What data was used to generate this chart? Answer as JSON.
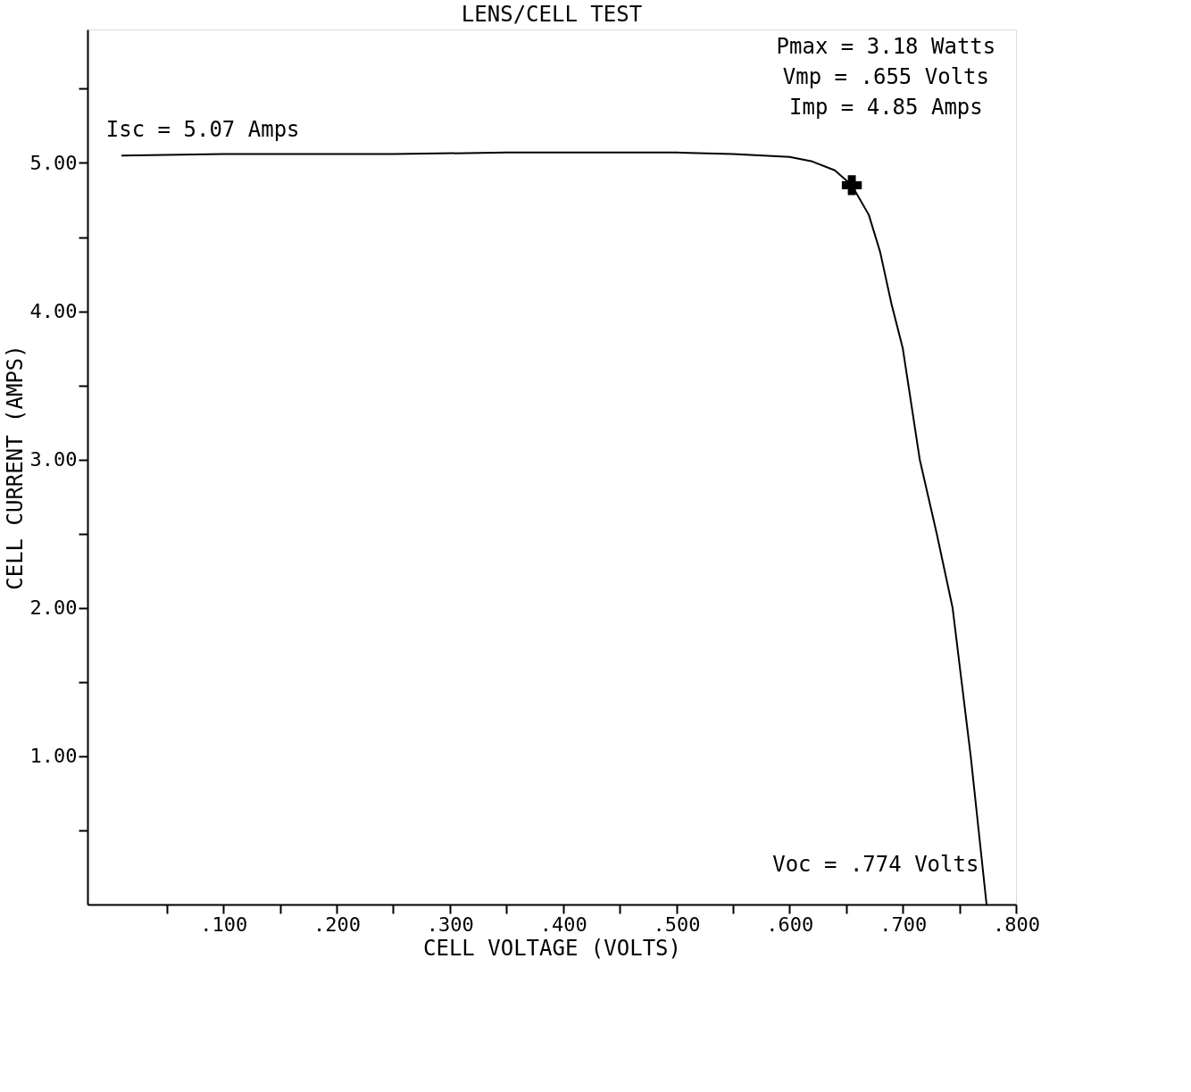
{
  "chart_data": {
    "type": "line",
    "title": "LENS/CELL TEST",
    "xlabel": "CELL VOLTAGE (VOLTS)",
    "ylabel": "CELL CURRENT  (AMPS)",
    "xlim": [
      -0.02,
      0.8
    ],
    "ylim": [
      0,
      5.9
    ],
    "xticks": [
      {
        "value": 0.05,
        "label": null
      },
      {
        "value": 0.1,
        "label": ".100"
      },
      {
        "value": 0.15,
        "label": null
      },
      {
        "value": 0.2,
        "label": ".200"
      },
      {
        "value": 0.25,
        "label": null
      },
      {
        "value": 0.3,
        "label": ".300"
      },
      {
        "value": 0.35,
        "label": null
      },
      {
        "value": 0.4,
        "label": ".400"
      },
      {
        "value": 0.45,
        "label": null
      },
      {
        "value": 0.5,
        "label": ".500"
      },
      {
        "value": 0.55,
        "label": null
      },
      {
        "value": 0.6,
        "label": ".600"
      },
      {
        "value": 0.65,
        "label": null
      },
      {
        "value": 0.7,
        "label": ".700"
      },
      {
        "value": 0.75,
        "label": null
      },
      {
        "value": 0.8,
        "label": ".800"
      }
    ],
    "yticks": [
      {
        "value": 0.5,
        "label": null
      },
      {
        "value": 1,
        "label": "1.00"
      },
      {
        "value": 1.5,
        "label": null
      },
      {
        "value": 2,
        "label": "2.00"
      },
      {
        "value": 2.5,
        "label": null
      },
      {
        "value": 3,
        "label": "3.00"
      },
      {
        "value": 3.5,
        "label": null
      },
      {
        "value": 4,
        "label": "4.00"
      },
      {
        "value": 4.5,
        "label": null
      },
      {
        "value": 5,
        "label": "5.00"
      },
      {
        "value": 5.5,
        "label": null
      }
    ],
    "grid": false,
    "line_style": "solid",
    "series": [
      {
        "marker": "none",
        "color": "#000000",
        "x": [
          0.01,
          0.1,
          0.25,
          0.35,
          0.5,
          0.55,
          0.6,
          0.62,
          0.64,
          0.655,
          0.67,
          0.68,
          0.69,
          0.7,
          0.715,
          0.73,
          0.744,
          0.76,
          0.774
        ],
        "values": [
          5.05,
          5.06,
          5.06,
          5.07,
          5.07,
          5.06,
          5.04,
          5.01,
          4.95,
          4.85,
          4.65,
          4.4,
          4.05,
          3.75,
          3.0,
          2.5,
          2.0,
          1.0,
          0
        ]
      },
      {
        "type": "scatter",
        "marker": "cross",
        "color": "#000000",
        "x": [
          0.655
        ],
        "values": [
          4.85
        ]
      }
    ],
    "annotations": [
      "Isc = 5.07 Amps",
      "Pmax = 3.18 Watts",
      "Vmp = .655 Volts",
      "Imp = 4.85 Amps",
      "Voc = .774 Volts"
    ]
  }
}
